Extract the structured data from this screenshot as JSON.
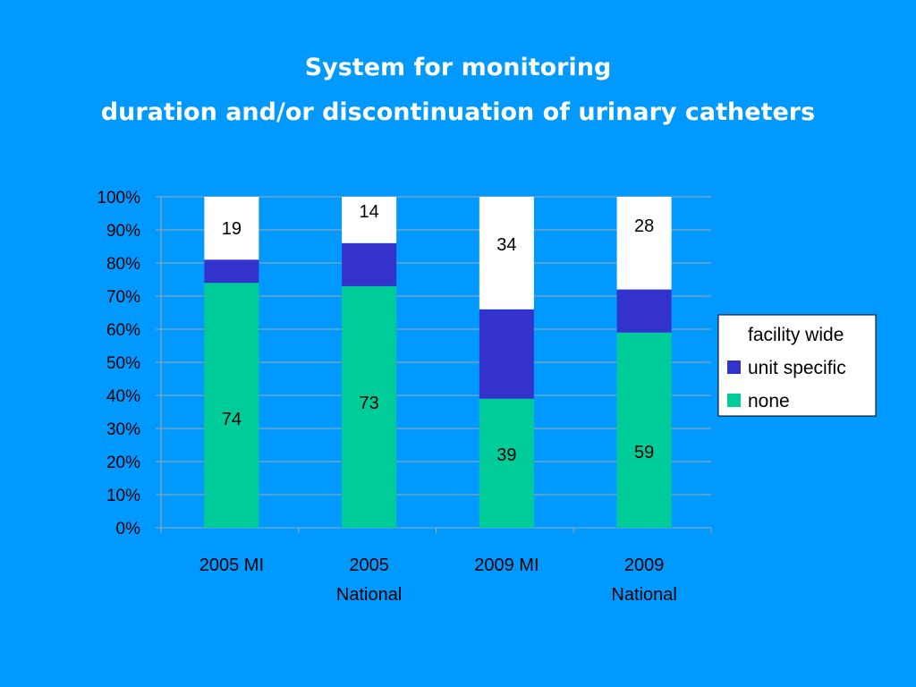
{
  "title": {
    "line1": "System for monitoring",
    "line2": "duration and/or discontinuation of urinary catheters"
  },
  "colors": {
    "background": "#0099ff",
    "none": "#00cc99",
    "unit_specific": "#3333cc",
    "facility_wide": "#ffffff",
    "axis_text": "#000000"
  },
  "chart_data": {
    "type": "bar",
    "stacked": true,
    "percent_stacked": true,
    "categories": [
      [
        "2005 MI"
      ],
      [
        "2005",
        "National"
      ],
      [
        "2009 MI"
      ],
      [
        "2009",
        "National"
      ]
    ],
    "series": [
      {
        "name": "none",
        "values": [
          74,
          73,
          39,
          59
        ],
        "labels": [
          "74",
          "73",
          "39",
          "59"
        ]
      },
      {
        "name": "unit specific",
        "values": [
          7,
          13,
          27,
          13
        ],
        "labels": [
          "",
          "",
          "",
          ""
        ]
      },
      {
        "name": "facility wide",
        "values": [
          19,
          14,
          34,
          28
        ],
        "labels": [
          "19",
          "14",
          "34",
          "28"
        ]
      }
    ],
    "ylim": [
      0,
      100
    ],
    "yticks": [
      "0%",
      "10%",
      "20%",
      "30%",
      "40%",
      "50%",
      "60%",
      "70%",
      "80%",
      "90%",
      "100%"
    ],
    "grid": true,
    "legend": [
      "facility wide",
      "unit specific",
      "none"
    ],
    "legend_position": "right"
  }
}
